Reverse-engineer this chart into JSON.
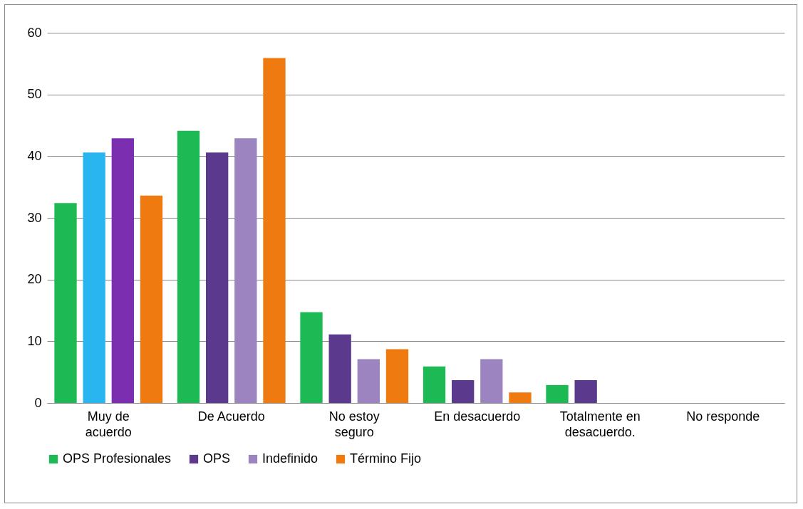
{
  "chart_data": {
    "type": "bar",
    "categories": [
      "Muy de acuerdo",
      "De Acuerdo",
      "No estoy seguro",
      "En desacuerdo",
      "Totalmente en desacuerdo.",
      "No responde"
    ],
    "series": [
      {
        "name": "OPS Profesionales",
        "color": "#1db954",
        "values": [
          32.4,
          44.1,
          14.7,
          5.9,
          2.9,
          null
        ]
      },
      {
        "name": "OPS",
        "color": "#5b3a8e",
        "colors": [
          "#29b6f0",
          "#5b3a8e",
          "#5b3a8e",
          "#5b3a8e",
          "#5b3a8e",
          "#5b3a8e"
        ],
        "values": [
          40.6,
          40.6,
          11.1,
          3.7,
          3.7,
          null
        ]
      },
      {
        "name": "Indefinido",
        "color": "#9b84bf",
        "colors": [
          "#7b2fb0",
          "#9b84bf",
          "#9b84bf",
          "#9b84bf",
          "#9b84bf",
          "#9b84bf"
        ],
        "values": [
          42.9,
          42.9,
          7.1,
          7.1,
          null,
          null
        ]
      },
      {
        "name": "Término Fijo",
        "color": "#ef7a0f",
        "values": [
          33.6,
          55.9,
          8.7,
          1.7,
          null,
          null
        ]
      }
    ],
    "ylim": [
      0,
      60
    ],
    "yticks": [
      0,
      10,
      20,
      30,
      40,
      50,
      60
    ],
    "grid": "y",
    "legend": "bottom"
  }
}
